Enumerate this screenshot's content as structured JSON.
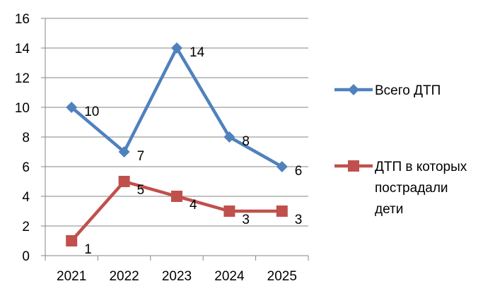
{
  "chart_data": {
    "type": "line",
    "title": "",
    "xlabel": "",
    "ylabel": "",
    "categories": [
      "2021",
      "2022",
      "2023",
      "2024",
      "2025"
    ],
    "ylim": [
      0,
      16
    ],
    "yticks": [
      0,
      2,
      4,
      6,
      8,
      10,
      12,
      14,
      16
    ],
    "grid": "horizontal",
    "legend_position": "right",
    "series": [
      {
        "name": "Всего ДТП",
        "legend_lines": [
          "Всего ДТП"
        ],
        "values": [
          10,
          7,
          14,
          8,
          6
        ],
        "color": "#4F81BD",
        "marker": "diamond"
      },
      {
        "name": "ДТП в которых пострадали дети",
        "legend_lines": [
          "ДТП в которых",
          "пострадали",
          "дети"
        ],
        "values": [
          1,
          5,
          4,
          3,
          3
        ],
        "color": "#C0504D",
        "marker": "square"
      }
    ]
  }
}
